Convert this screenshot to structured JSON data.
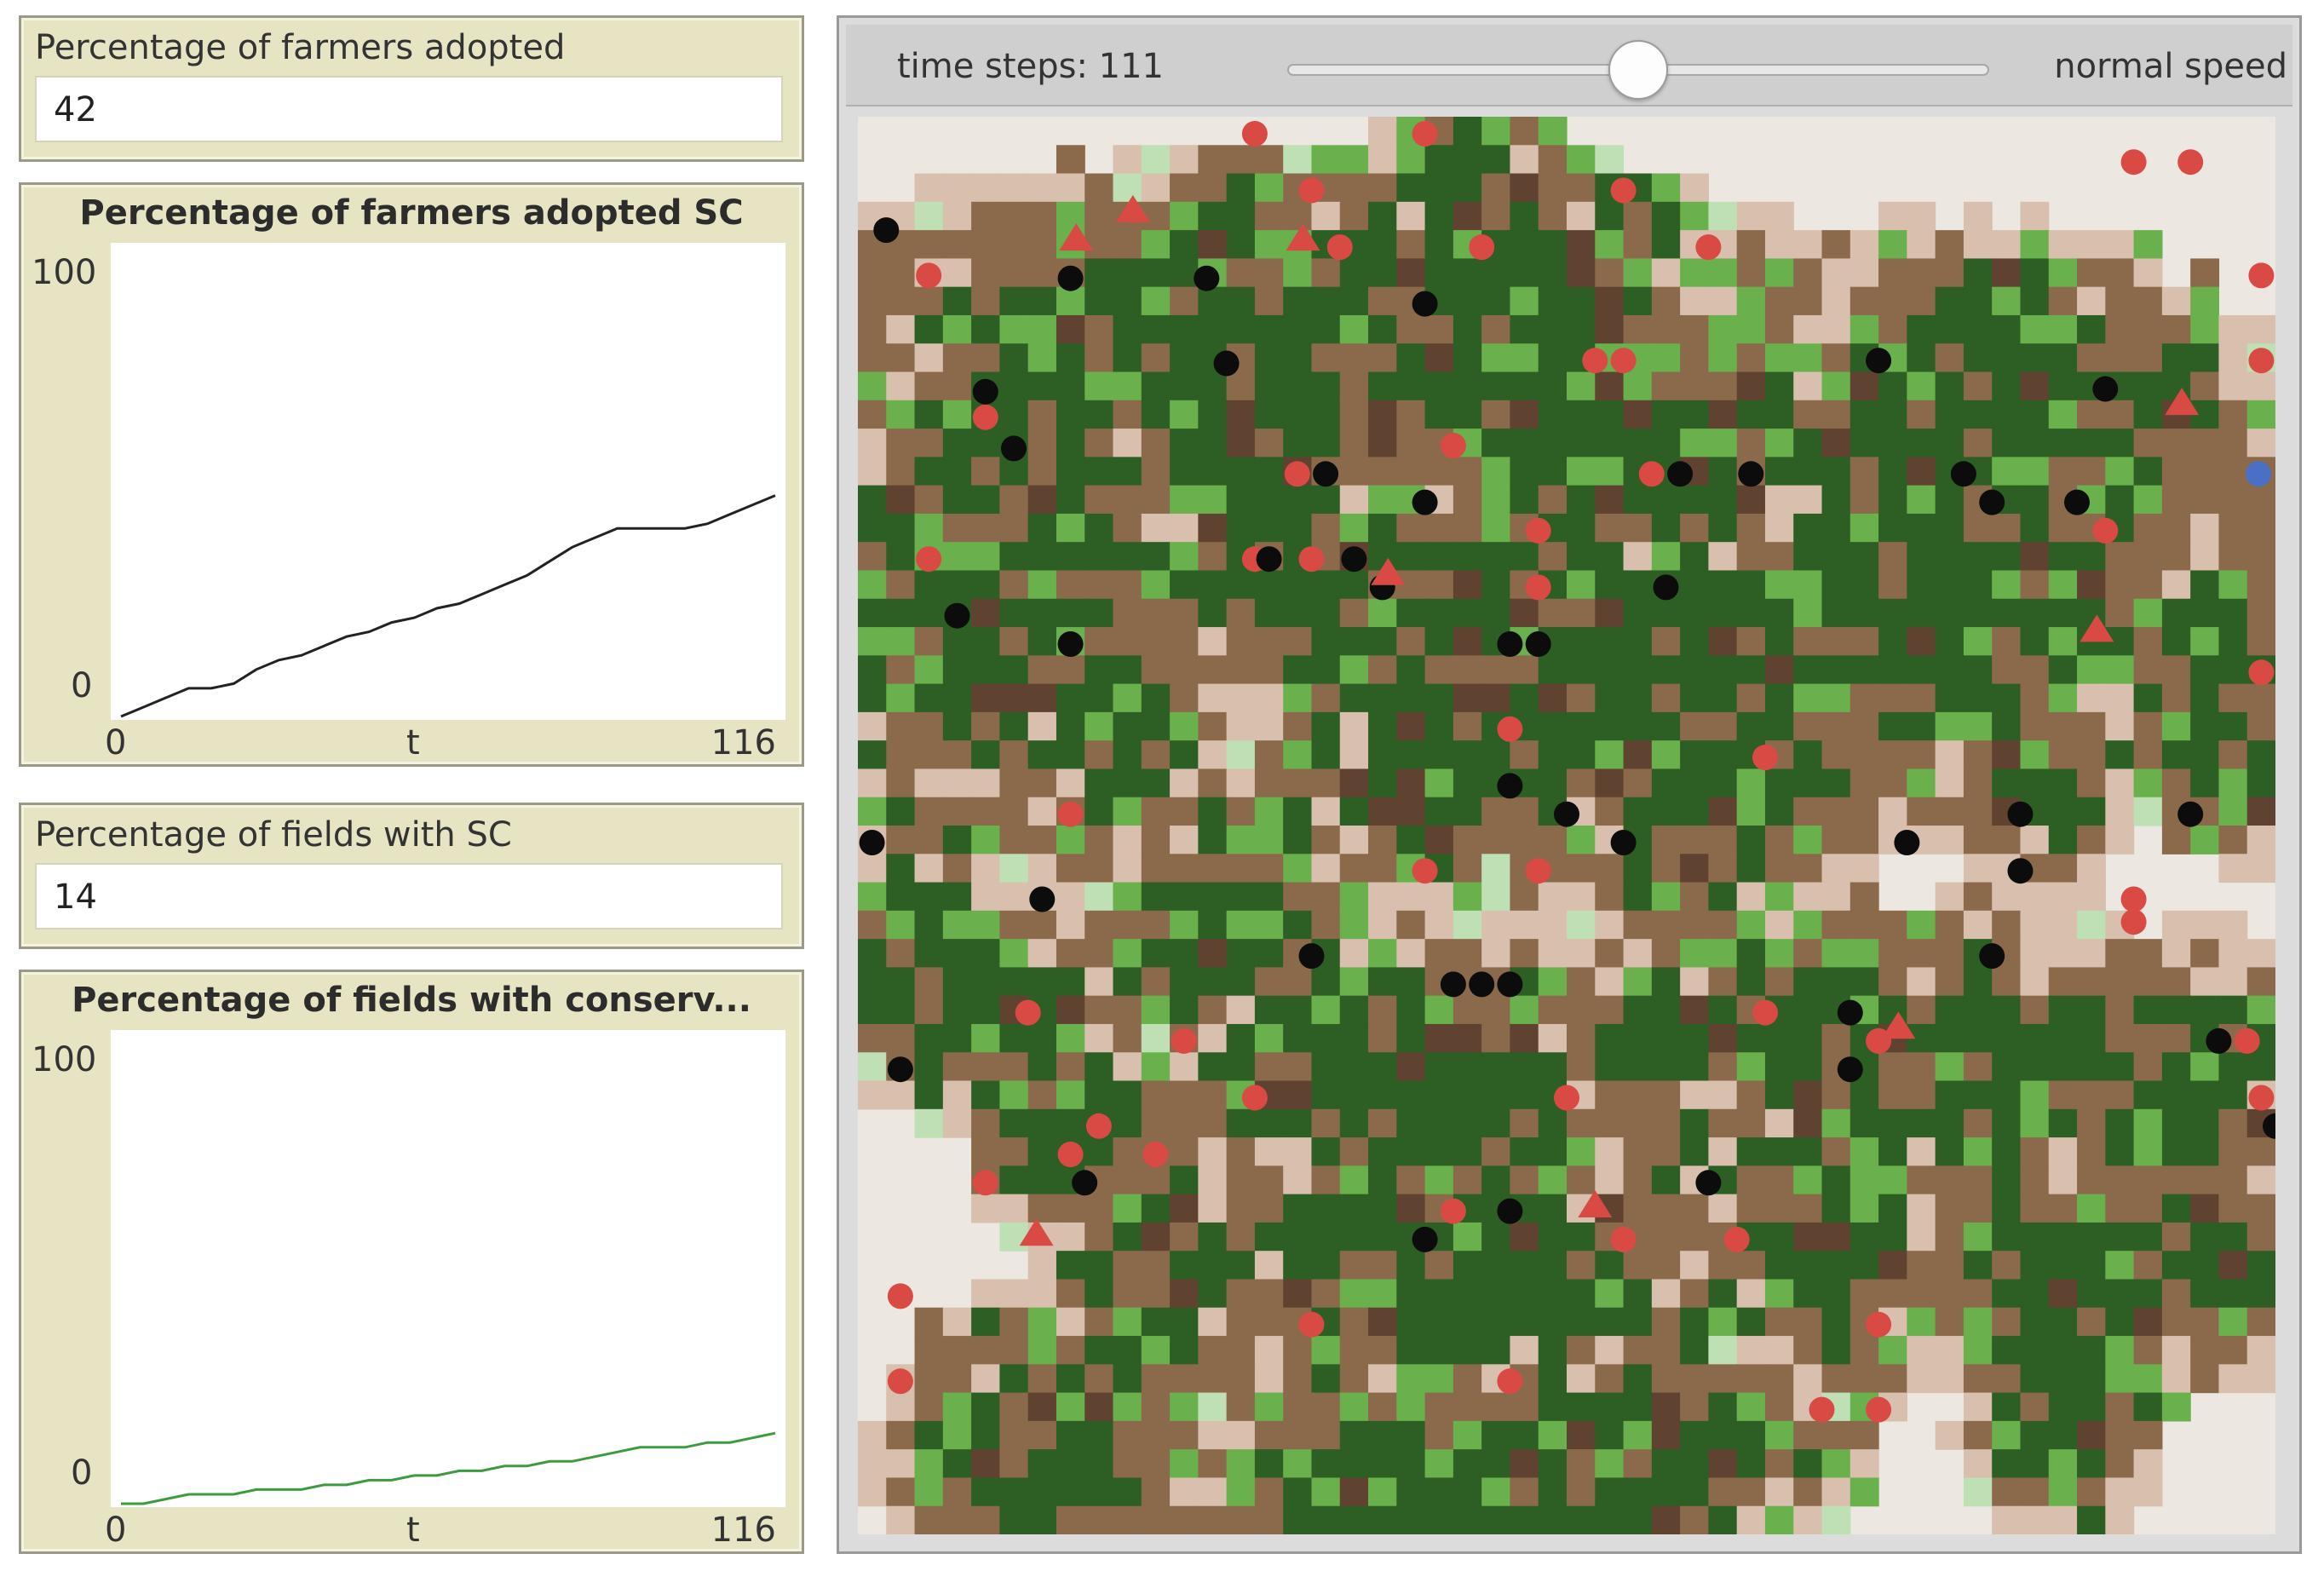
{
  "monitors": [
    {
      "label": "Percentage of farmers adopted",
      "value": "42"
    },
    {
      "label": "Percentage of fields with SC",
      "value": "14"
    }
  ],
  "plots": [
    {
      "title": "Percentage of farmers adopted SC",
      "y_max_label": "100",
      "y_min_label": "0",
      "x_min_label": "0",
      "x_axis_label": "t",
      "x_max_label": "116",
      "line_color": "#222222"
    },
    {
      "title": "Percentage of fields with conserv...",
      "y_max_label": "100",
      "y_min_label": "0",
      "x_min_label": "0",
      "x_axis_label": "t",
      "x_max_label": "116",
      "line_color": "#3d9b3d"
    }
  ],
  "chart_data": [
    {
      "type": "line",
      "title": "Percentage of farmers adopted SC",
      "xlabel": "t",
      "xlim": [
        0,
        116
      ],
      "ylim": [
        0,
        100
      ],
      "series": [
        {
          "x": [
            0,
            4,
            8,
            12,
            16,
            20,
            24,
            28,
            32,
            36,
            40,
            44,
            48,
            52,
            56,
            60,
            64,
            68,
            72,
            76,
            80,
            84,
            88,
            92,
            96,
            100,
            104,
            108,
            112,
            116
          ],
          "values": [
            0,
            2,
            4,
            6,
            6,
            7,
            10,
            12,
            13,
            15,
            17,
            18,
            20,
            21,
            23,
            24,
            26,
            28,
            30,
            33,
            36,
            38,
            40,
            40,
            40,
            40,
            41,
            43,
            45,
            47
          ]
        }
      ]
    },
    {
      "type": "line",
      "title": "Percentage of fields with conserv...",
      "xlabel": "t",
      "xlim": [
        0,
        116
      ],
      "ylim": [
        0,
        100
      ],
      "series": [
        {
          "x": [
            0,
            4,
            8,
            12,
            16,
            20,
            24,
            28,
            32,
            36,
            40,
            44,
            48,
            52,
            56,
            60,
            64,
            68,
            72,
            76,
            80,
            84,
            88,
            92,
            96,
            100,
            104,
            108,
            112,
            116
          ],
          "values": [
            0,
            0,
            1,
            2,
            2,
            2,
            3,
            3,
            3,
            4,
            4,
            5,
            5,
            6,
            6,
            7,
            7,
            8,
            8,
            9,
            9,
            10,
            11,
            12,
            12,
            12,
            13,
            13,
            14,
            15
          ]
        }
      ]
    }
  ],
  "view": {
    "time_label": "time steps: 111",
    "speed_label": "normal speed",
    "speed_setting": 0.5
  }
}
